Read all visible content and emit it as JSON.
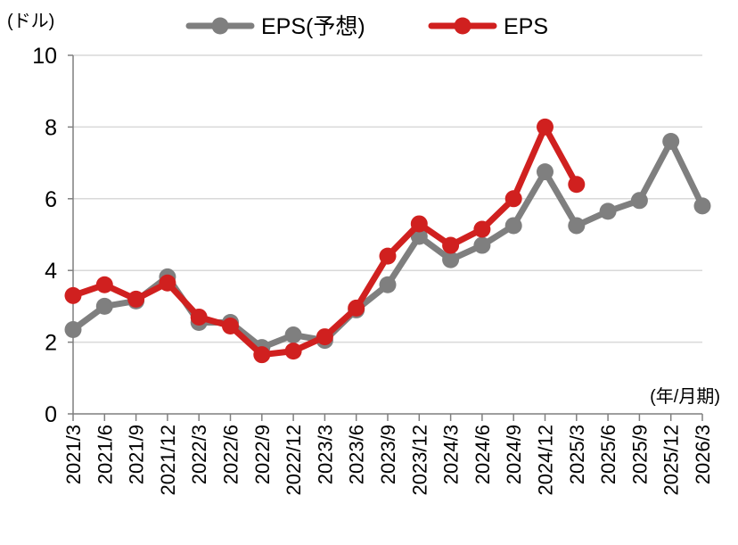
{
  "chart_data": {
    "type": "line",
    "title": "",
    "xlabel": "(年/月期)",
    "ylabel": "(ドル)",
    "ylim": [
      0,
      10
    ],
    "yticks": [
      "0",
      "2",
      "4",
      "6",
      "8",
      "10"
    ],
    "grid": true,
    "legend_position": "top",
    "categories": [
      "2021/3",
      "2021/6",
      "2021/9",
      "2021/12",
      "2022/3",
      "2022/6",
      "2022/9",
      "2022/12",
      "2023/3",
      "2023/6",
      "2023/9",
      "2023/12",
      "2024/3",
      "2024/6",
      "2024/9",
      "2024/12",
      "2025/3",
      "2025/6",
      "2025/9",
      "2025/12",
      "2026/3"
    ],
    "series": [
      {
        "name": "EPS(予想)",
        "color": "#7f7f7f",
        "values": [
          2.35,
          3.0,
          3.15,
          3.82,
          2.55,
          2.55,
          1.85,
          2.2,
          2.05,
          2.9,
          3.6,
          4.95,
          4.3,
          4.7,
          5.25,
          6.75,
          5.25,
          5.65,
          5.95,
          7.6,
          5.8
        ]
      },
      {
        "name": "EPS",
        "color": "#d0201f",
        "values": [
          3.3,
          3.6,
          3.2,
          3.65,
          2.7,
          2.45,
          1.65,
          1.75,
          2.15,
          2.95,
          4.4,
          5.3,
          4.7,
          5.15,
          6.0,
          8.0,
          6.4,
          null,
          null,
          null,
          null
        ]
      }
    ]
  }
}
